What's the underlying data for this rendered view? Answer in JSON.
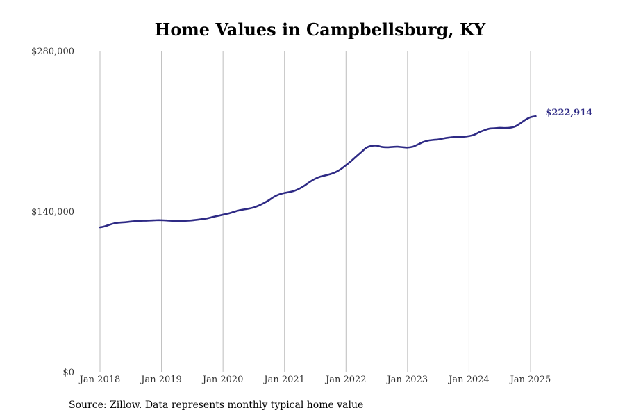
{
  "chart_data": {
    "type": "line",
    "title": "Home Values in Campbellsburg, KY",
    "source": "Source: Zillow. Data represents monthly typical home value",
    "xlabel": "",
    "ylabel": "",
    "ylim": [
      0,
      280000
    ],
    "y_ticks": [
      0,
      140000,
      280000
    ],
    "y_tick_labels": [
      "$0",
      "$140,000",
      "$280,000"
    ],
    "x_ticks": [
      "2018-01",
      "2019-01",
      "2020-01",
      "2021-01",
      "2022-01",
      "2023-01",
      "2024-01",
      "2025-01"
    ],
    "x_tick_labels": [
      "Jan 2018",
      "Jan 2019",
      "Jan 2020",
      "Jan 2021",
      "Jan 2022",
      "Jan 2023",
      "Jan 2024",
      "Jan 2025"
    ],
    "grid": "vertical",
    "line_color": "#2e2a85",
    "end_label": "$222,914",
    "series": [
      {
        "points": [
          [
            "2018-01",
            126000
          ],
          [
            "2018-02",
            127000
          ],
          [
            "2018-03",
            128500
          ],
          [
            "2018-04",
            129700
          ],
          [
            "2018-05",
            130200
          ],
          [
            "2018-06",
            130500
          ],
          [
            "2018-07",
            131000
          ],
          [
            "2018-08",
            131500
          ],
          [
            "2018-09",
            131700
          ],
          [
            "2018-10",
            131800
          ],
          [
            "2018-11",
            132000
          ],
          [
            "2018-12",
            132200
          ],
          [
            "2019-01",
            132200
          ],
          [
            "2019-02",
            132000
          ],
          [
            "2019-03",
            131700
          ],
          [
            "2019-04",
            131600
          ],
          [
            "2019-05",
            131600
          ],
          [
            "2019-06",
            131800
          ],
          [
            "2019-07",
            132100
          ],
          [
            "2019-08",
            132600
          ],
          [
            "2019-09",
            133200
          ],
          [
            "2019-10",
            133900
          ],
          [
            "2019-11",
            135000
          ],
          [
            "2019-12",
            136000
          ],
          [
            "2020-01",
            137000
          ],
          [
            "2020-02",
            138000
          ],
          [
            "2020-03",
            139300
          ],
          [
            "2020-04",
            140600
          ],
          [
            "2020-05",
            141500
          ],
          [
            "2020-06",
            142300
          ],
          [
            "2020-07",
            143300
          ],
          [
            "2020-08",
            145000
          ],
          [
            "2020-09",
            147200
          ],
          [
            "2020-10",
            149800
          ],
          [
            "2020-11",
            152700
          ],
          [
            "2020-12",
            154800
          ],
          [
            "2021-01",
            156000
          ],
          [
            "2021-02",
            156800
          ],
          [
            "2021-03",
            158000
          ],
          [
            "2021-04",
            160000
          ],
          [
            "2021-05",
            162700
          ],
          [
            "2021-06",
            165800
          ],
          [
            "2021-07",
            168400
          ],
          [
            "2021-08",
            170200
          ],
          [
            "2021-09",
            171300
          ],
          [
            "2021-10",
            172500
          ],
          [
            "2021-11",
            174200
          ],
          [
            "2021-12",
            176800
          ],
          [
            "2022-01",
            180200
          ],
          [
            "2022-02",
            183800
          ],
          [
            "2022-03",
            187800
          ],
          [
            "2022-04",
            191700
          ],
          [
            "2022-05",
            195500
          ],
          [
            "2022-06",
            197000
          ],
          [
            "2022-07",
            197200
          ],
          [
            "2022-08",
            196100
          ],
          [
            "2022-09",
            195800
          ],
          [
            "2022-10",
            196100
          ],
          [
            "2022-11",
            196300
          ],
          [
            "2022-12",
            195900
          ],
          [
            "2023-01",
            195600
          ],
          [
            "2023-02",
            196300
          ],
          [
            "2023-03",
            198200
          ],
          [
            "2023-04",
            200300
          ],
          [
            "2023-05",
            201600
          ],
          [
            "2023-06",
            202200
          ],
          [
            "2023-07",
            202600
          ],
          [
            "2023-08",
            203500
          ],
          [
            "2023-09",
            204200
          ],
          [
            "2023-10",
            204700
          ],
          [
            "2023-11",
            204800
          ],
          [
            "2023-12",
            205000
          ],
          [
            "2024-01",
            205600
          ],
          [
            "2024-02",
            206700
          ],
          [
            "2024-03",
            209000
          ],
          [
            "2024-04",
            210700
          ],
          [
            "2024-05",
            212100
          ],
          [
            "2024-06",
            212400
          ],
          [
            "2024-07",
            212800
          ],
          [
            "2024-08",
            212600
          ],
          [
            "2024-09",
            212900
          ],
          [
            "2024-10",
            214000
          ],
          [
            "2024-11",
            216700
          ],
          [
            "2024-12",
            219800
          ],
          [
            "2025-01",
            222000
          ],
          [
            "2025-02",
            222914
          ]
        ]
      }
    ]
  }
}
